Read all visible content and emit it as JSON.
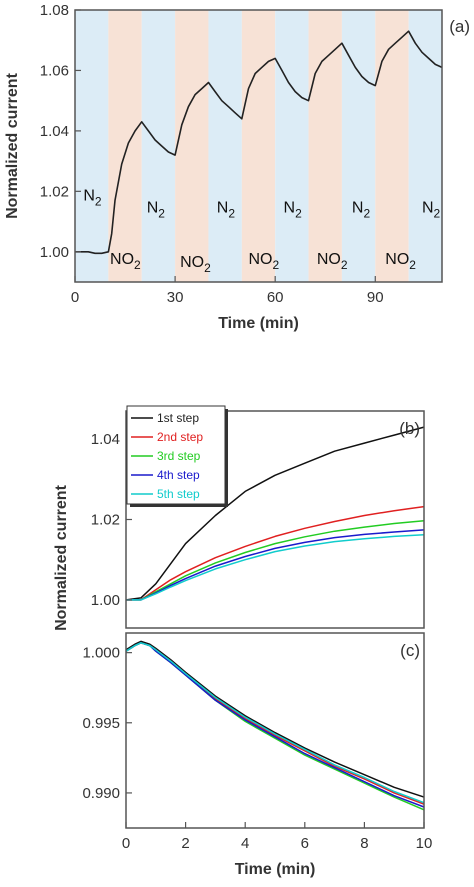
{
  "chart_data": [
    {
      "type": "line",
      "panel_label": "(a)",
      "xlabel": "Time (min)",
      "ylabel": "Normalized current",
      "xlim": [
        0,
        110
      ],
      "ylim": [
        0.99,
        1.08
      ],
      "x_ticks": [
        "0",
        "30",
        "60",
        "90"
      ],
      "x_tick_values": [
        0,
        30,
        60,
        90
      ],
      "y_ticks": [
        "1.00",
        "1.02",
        "1.04",
        "1.06",
        "1.08"
      ],
      "y_tick_values": [
        1.0,
        1.02,
        1.04,
        1.06,
        1.08
      ],
      "background_bands": [
        {
          "start": 0,
          "end": 10,
          "gas": "N2",
          "color": "#dcecf6"
        },
        {
          "start": 10,
          "end": 20,
          "gas": "NO2",
          "color": "#f7e2d6"
        },
        {
          "start": 20,
          "end": 30,
          "gas": "N2",
          "color": "#dcecf6"
        },
        {
          "start": 30,
          "end": 40,
          "gas": "NO2",
          "color": "#f7e2d6"
        },
        {
          "start": 40,
          "end": 50,
          "gas": "N2",
          "color": "#dcecf6"
        },
        {
          "start": 50,
          "end": 60,
          "gas": "NO2",
          "color": "#f7e2d6"
        },
        {
          "start": 60,
          "end": 70,
          "gas": "N2",
          "color": "#dcecf6"
        },
        {
          "start": 70,
          "end": 80,
          "gas": "NO2",
          "color": "#f7e2d6"
        },
        {
          "start": 80,
          "end": 90,
          "gas": "N2",
          "color": "#dcecf6"
        },
        {
          "start": 90,
          "end": 100,
          "gas": "NO2",
          "color": "#f7e2d6"
        },
        {
          "start": 100,
          "end": 110,
          "gas": "N2",
          "color": "#dcecf6"
        }
      ],
      "annotations": [
        {
          "text": "N",
          "sub": "2",
          "x": 2.5,
          "y": 1.017
        },
        {
          "text": "NO",
          "sub": "2",
          "x": 10.5,
          "y": 0.996
        },
        {
          "text": "N",
          "sub": "2",
          "x": 21.5,
          "y": 1.013
        },
        {
          "text": "NO",
          "sub": "2",
          "x": 31.5,
          "y": 0.995
        },
        {
          "text": "N",
          "sub": "2",
          "x": 42.5,
          "y": 1.013
        },
        {
          "text": "NO",
          "sub": "2",
          "x": 52.0,
          "y": 0.996
        },
        {
          "text": "N",
          "sub": "2",
          "x": 62.5,
          "y": 1.013
        },
        {
          "text": "NO",
          "sub": "2",
          "x": 72.5,
          "y": 0.996
        },
        {
          "text": "N",
          "sub": "2",
          "x": 83.0,
          "y": 1.013
        },
        {
          "text": "NO",
          "sub": "2",
          "x": 93.0,
          "y": 0.996
        },
        {
          "text": "N",
          "sub": "2",
          "x": 104.0,
          "y": 1.013
        }
      ],
      "series": [
        {
          "color": "#222222",
          "x": [
            0,
            2,
            4,
            6,
            8,
            10,
            11,
            12,
            14,
            16,
            18,
            20,
            22,
            24,
            26,
            28,
            30,
            32,
            34,
            36,
            38,
            40,
            42,
            44,
            46,
            48,
            50,
            52,
            54,
            56,
            58,
            60,
            62,
            64,
            66,
            68,
            70,
            72,
            74,
            76,
            78,
            80,
            82,
            84,
            86,
            88,
            90,
            92,
            94,
            96,
            98,
            100,
            102,
            104,
            106,
            108,
            110
          ],
          "y": [
            1.0,
            1.0,
            1.0,
            0.9995,
            0.9995,
            1.0,
            1.006,
            1.017,
            1.029,
            1.036,
            1.04,
            1.043,
            1.04,
            1.037,
            1.035,
            1.033,
            1.032,
            1.042,
            1.048,
            1.052,
            1.054,
            1.056,
            1.053,
            1.05,
            1.048,
            1.046,
            1.044,
            1.054,
            1.059,
            1.061,
            1.063,
            1.064,
            1.06,
            1.056,
            1.053,
            1.051,
            1.05,
            1.059,
            1.063,
            1.065,
            1.067,
            1.069,
            1.065,
            1.061,
            1.058,
            1.056,
            1.055,
            1.063,
            1.067,
            1.069,
            1.071,
            1.073,
            1.069,
            1.066,
            1.064,
            1.062,
            1.061
          ]
        }
      ]
    },
    {
      "type": "line",
      "panel_label": "(b)",
      "xlabel": "",
      "ylabel": "Normalized current",
      "xlim": [
        0,
        10
      ],
      "ylim": [
        0.993,
        1.047
      ],
      "y_ticks": [
        "1.00",
        "1.02",
        "1.04"
      ],
      "y_tick_values": [
        1.0,
        1.02,
        1.04
      ],
      "legend": {
        "position": "top-left"
      },
      "series": [
        {
          "name": "1st step",
          "color": "#111111",
          "x": [
            0,
            0.5,
            1,
            1.5,
            2,
            3,
            4,
            5,
            6,
            7,
            8,
            9,
            10
          ],
          "y": [
            1.0,
            1.0005,
            1.004,
            1.009,
            1.014,
            1.021,
            1.027,
            1.031,
            1.034,
            1.037,
            1.039,
            1.041,
            1.043
          ]
        },
        {
          "name": "2nd step",
          "color": "#e02020",
          "x": [
            0,
            0.5,
            1,
            1.5,
            2,
            3,
            4,
            5,
            6,
            7,
            8,
            9,
            10
          ],
          "y": [
            1.0,
            1.0,
            1.0025,
            1.005,
            1.007,
            1.0105,
            1.0133,
            1.0158,
            1.0178,
            1.0195,
            1.021,
            1.0222,
            1.0232
          ]
        },
        {
          "name": "3rd step",
          "color": "#22cc22",
          "x": [
            0,
            0.5,
            1,
            1.5,
            2,
            3,
            4,
            5,
            6,
            7,
            8,
            9,
            10
          ],
          "y": [
            1.0,
            1.0,
            1.002,
            1.004,
            1.006,
            1.0092,
            1.0118,
            1.014,
            1.0157,
            1.0171,
            1.0181,
            1.019,
            1.0197
          ]
        },
        {
          "name": "4th step",
          "color": "#1a1acc",
          "x": [
            0,
            0.5,
            1,
            1.5,
            2,
            3,
            4,
            5,
            6,
            7,
            8,
            9,
            10
          ],
          "y": [
            1.0,
            1.0,
            1.0017,
            1.0036,
            1.0053,
            1.0084,
            1.0108,
            1.0128,
            1.0143,
            1.0155,
            1.0163,
            1.0169,
            1.0174
          ]
        },
        {
          "name": "5th step",
          "color": "#11cccc",
          "x": [
            0,
            0.5,
            1,
            1.5,
            2,
            3,
            4,
            5,
            6,
            7,
            8,
            9,
            10
          ],
          "y": [
            1.0,
            1.0,
            1.0015,
            1.0032,
            1.0048,
            1.0077,
            1.01,
            1.012,
            1.0134,
            1.0145,
            1.0152,
            1.0158,
            1.0162
          ]
        }
      ]
    },
    {
      "type": "line",
      "panel_label": "(c)",
      "xlabel": "Time (min)",
      "ylabel": "",
      "xlim": [
        0,
        10
      ],
      "ylim": [
        0.9875,
        1.0014
      ],
      "x_ticks": [
        "0",
        "2",
        "4",
        "6",
        "8",
        "10"
      ],
      "x_tick_values": [
        0,
        2,
        4,
        6,
        8,
        10
      ],
      "y_ticks": [
        "0.990",
        "0.995",
        "1.000"
      ],
      "y_tick_values": [
        0.99,
        0.995,
        1.0
      ],
      "series": [
        {
          "name": "1st step",
          "color": "#111111",
          "x": [
            0,
            0.3,
            0.5,
            0.8,
            1,
            1.5,
            2,
            3,
            4,
            5,
            6,
            7,
            8,
            9,
            10
          ],
          "y": [
            1.0002,
            1.0006,
            1.0008,
            1.0006,
            1.0003,
            0.9995,
            0.9986,
            0.9969,
            0.9955,
            0.9943,
            0.9932,
            0.9922,
            0.9913,
            0.9904,
            0.9897
          ]
        },
        {
          "name": "2nd step",
          "color": "#e02020",
          "x": [
            0,
            0.3,
            0.5,
            0.8,
            1,
            1.5,
            2,
            3,
            4,
            5,
            6,
            7,
            8,
            9,
            10
          ],
          "y": [
            1.0001,
            1.0005,
            1.0007,
            1.0005,
            1.0002,
            0.9994,
            0.9985,
            0.9967,
            0.9953,
            0.9941,
            0.993,
            0.9919,
            0.991,
            0.99,
            0.9892
          ]
        },
        {
          "name": "3rd step",
          "color": "#22cc22",
          "x": [
            0,
            0.3,
            0.5,
            0.8,
            1,
            1.5,
            2,
            3,
            4,
            5,
            6,
            7,
            8,
            9,
            10
          ],
          "y": [
            1.0001,
            1.0005,
            1.0007,
            1.0005,
            1.0001,
            0.9993,
            0.9984,
            0.9966,
            0.9951,
            0.9939,
            0.9927,
            0.9917,
            0.9907,
            0.9897,
            0.9888
          ]
        },
        {
          "name": "4th step",
          "color": "#1a1acc",
          "x": [
            0,
            0.3,
            0.5,
            0.8,
            1,
            1.5,
            2,
            3,
            4,
            5,
            6,
            7,
            8,
            9,
            10
          ],
          "y": [
            1.0001,
            1.0005,
            1.0007,
            1.0005,
            1.0001,
            0.9993,
            0.9984,
            0.9966,
            0.9952,
            0.994,
            0.9928,
            0.9918,
            0.9908,
            0.9898,
            0.989
          ]
        },
        {
          "name": "5th step",
          "color": "#11cccc",
          "x": [
            0,
            0.3,
            0.5,
            0.8,
            1,
            1.5,
            2,
            3,
            4,
            5,
            6,
            7,
            8,
            9,
            10
          ],
          "y": [
            1.0001,
            1.0005,
            1.0007,
            1.0005,
            1.0002,
            0.9994,
            0.9985,
            0.9968,
            0.9954,
            0.9942,
            0.9931,
            0.992,
            0.9911,
            0.9901,
            0.9893
          ]
        }
      ]
    }
  ]
}
